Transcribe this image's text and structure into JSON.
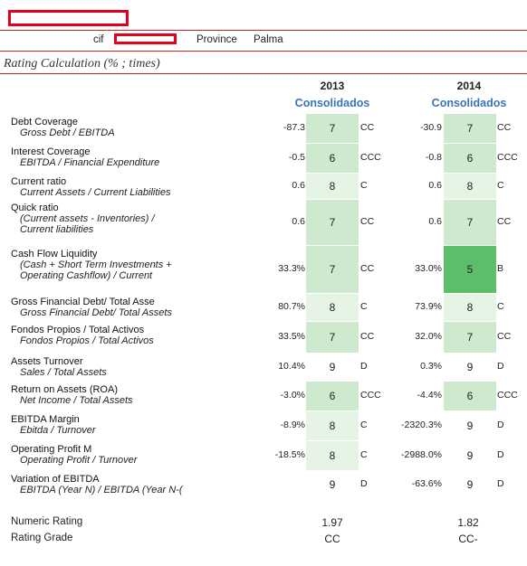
{
  "header": {
    "cif_label": "cif",
    "province_label": "Province",
    "province_value": "Palma",
    "title": "Rating Calculation (% ; times)"
  },
  "years": [
    {
      "year": "2013",
      "subtitle": "Consolidados"
    },
    {
      "year": "2014",
      "subtitle": "Consolidados"
    }
  ],
  "colors": {
    "accent_red": "#e3001b",
    "subtitle_blue": "#3a74b8",
    "score_light": "#e6f4e6",
    "score_medium": "#cfe9cf",
    "score_strong": "#9dd59d",
    "score_top": "#5cbd6a"
  },
  "rows": [
    {
      "label": "Debt Coverage",
      "formula": "Gross Debt / EBITDA",
      "y2013": {
        "value": "-87.3",
        "score": "7",
        "grade": "CC"
      },
      "y2014": {
        "value": "-30.9",
        "score": "7",
        "grade": "CC"
      }
    },
    {
      "label": "Interest Coverage",
      "formula": "EBITDA / Financial Expenditure",
      "y2013": {
        "value": "-0.5",
        "score": "6",
        "grade": "CCC"
      },
      "y2014": {
        "value": "-0.8",
        "score": "6",
        "grade": "CCC"
      }
    },
    {
      "label": "Current ratio",
      "formula": "Current Assets / Current Liabilities",
      "y2013": {
        "value": "0.6",
        "score": "8",
        "grade": "C"
      },
      "y2014": {
        "value": "0.6",
        "score": "8",
        "grade": "C"
      }
    },
    {
      "label": "Quick ratio",
      "formula": "(Current assets - Inventories) /",
      "formula2": "Current liabilities",
      "y2013": {
        "value": "0.6",
        "score": "7",
        "grade": "CC"
      },
      "y2014": {
        "value": "0.6",
        "score": "7",
        "grade": "CC"
      }
    },
    {
      "label": "Cash Flow Liquidity",
      "formula": "(Cash + Short Term Investments +",
      "formula2": "Operating Cashflow) / Current",
      "y2013": {
        "value": "33.3%",
        "score": "7",
        "grade": "CC"
      },
      "y2014": {
        "value": "33.0%",
        "score": "5",
        "grade": "B"
      }
    },
    {
      "label": "Gross Financial Debt/ Total Asse",
      "formula": "Gross Financial Debt/ Total Assets",
      "y2013": {
        "value": "80.7%",
        "score": "8",
        "grade": "C"
      },
      "y2014": {
        "value": "73.9%",
        "score": "8",
        "grade": "C"
      }
    },
    {
      "label": "Fondos Propios / Total Activos",
      "formula": "Fondos Propios / Total Activos",
      "y2013": {
        "value": "33.5%",
        "score": "7",
        "grade": "CC"
      },
      "y2014": {
        "value": "32.0%",
        "score": "7",
        "grade": "CC"
      }
    },
    {
      "label": "Assets Turnover",
      "formula": "Sales / Total Assets",
      "y2013": {
        "value": "10.4%",
        "score": "9",
        "grade": "D"
      },
      "y2014": {
        "value": "0.3%",
        "score": "9",
        "grade": "D"
      }
    },
    {
      "label": "Return on Assets (ROA)",
      "formula": "Net Income / Total Assets",
      "y2013": {
        "value": "-3.0%",
        "score": "6",
        "grade": "CCC"
      },
      "y2014": {
        "value": "-4.4%",
        "score": "6",
        "grade": "CCC"
      }
    },
    {
      "label": "EBITDA Margin",
      "formula": "Ebitda / Turnover",
      "y2013": {
        "value": "-8.9%",
        "score": "8",
        "grade": "C"
      },
      "y2014": {
        "value": "-2320.3%",
        "score": "9",
        "grade": "D"
      }
    },
    {
      "label": "Operating Profit M",
      "formula": "Operating Profit / Turnover",
      "y2013": {
        "value": "-18.5%",
        "score": "8",
        "grade": "C"
      },
      "y2014": {
        "value": "-2988.0%",
        "score": "9",
        "grade": "D"
      }
    },
    {
      "label": "Variation of EBITDA",
      "formula": "EBITDA (Year N) / EBITDA (Year N-(",
      "y2013": {
        "value": "",
        "score": "9",
        "grade": "D"
      },
      "y2014": {
        "value": "-63.6%",
        "score": "9",
        "grade": "D"
      }
    }
  ],
  "summary": {
    "numeric_label": "Numeric Rating",
    "grade_label": "Rating Grade",
    "numeric_2013": "1.97",
    "numeric_2014": "1.82",
    "grade_2013": "CC",
    "grade_2014": "CC-"
  }
}
